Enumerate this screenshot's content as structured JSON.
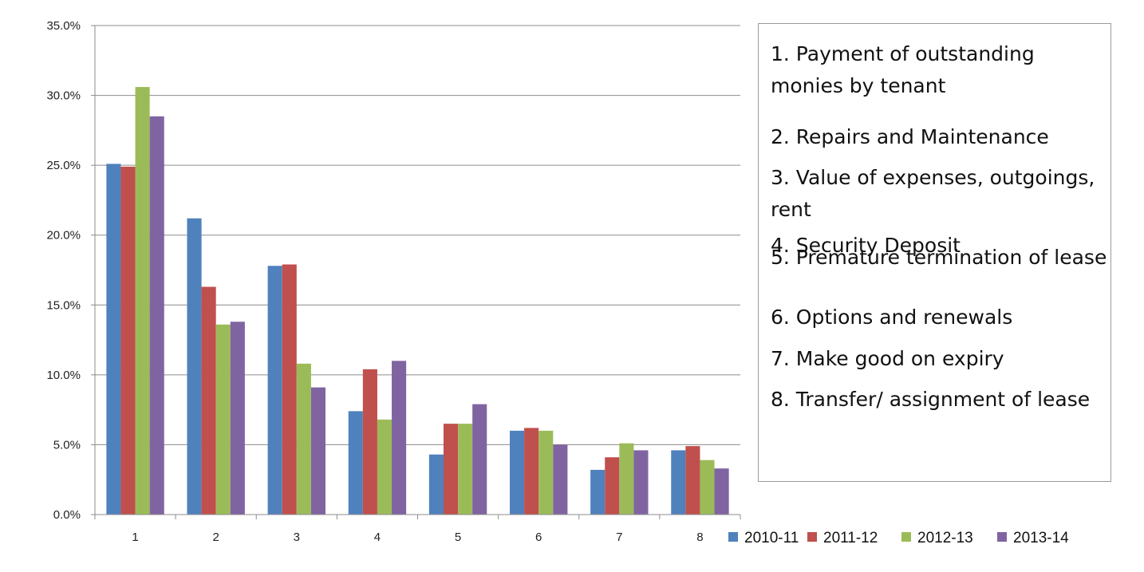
{
  "chart_data": {
    "type": "bar",
    "categories": [
      "1",
      "2",
      "3",
      "4",
      "5",
      "6",
      "7",
      "8"
    ],
    "series": [
      {
        "name": "2010-11",
        "color": "#4f81bd",
        "values": [
          25.1,
          21.2,
          17.8,
          7.4,
          4.3,
          6.0,
          3.2,
          4.6
        ]
      },
      {
        "name": "2011-12",
        "color": "#c0504d",
        "values": [
          24.9,
          16.3,
          17.9,
          10.4,
          6.5,
          6.2,
          4.1,
          4.9
        ]
      },
      {
        "name": "2012-13",
        "color": "#9bbb59",
        "values": [
          30.6,
          13.6,
          10.8,
          6.8,
          6.5,
          6.0,
          5.1,
          3.9
        ]
      },
      {
        "name": "2013-14",
        "color": "#8064a2",
        "values": [
          28.5,
          13.8,
          9.1,
          11.0,
          7.9,
          5.0,
          4.6,
          3.3
        ]
      }
    ],
    "ylim": [
      0,
      35
    ],
    "yticks": [
      "0.0%",
      "5.0%",
      "10.0%",
      "15.0%",
      "20.0%",
      "25.0%",
      "30.0%",
      "35.0%"
    ],
    "grid": true,
    "legend": "bottom-right",
    "title": "",
    "xlabel": "",
    "ylabel": ""
  },
  "notes": [
    "1. Payment of outstanding monies by tenant",
    "2. Repairs and Maintenance",
    "3. Value of expenses, outgoings, rent",
    "4. Security Deposit",
    "5. Premature termination of lease",
    "6. Options and renewals",
    "7. Make good on expiry",
    "8. Transfer/ assignment of lease"
  ]
}
